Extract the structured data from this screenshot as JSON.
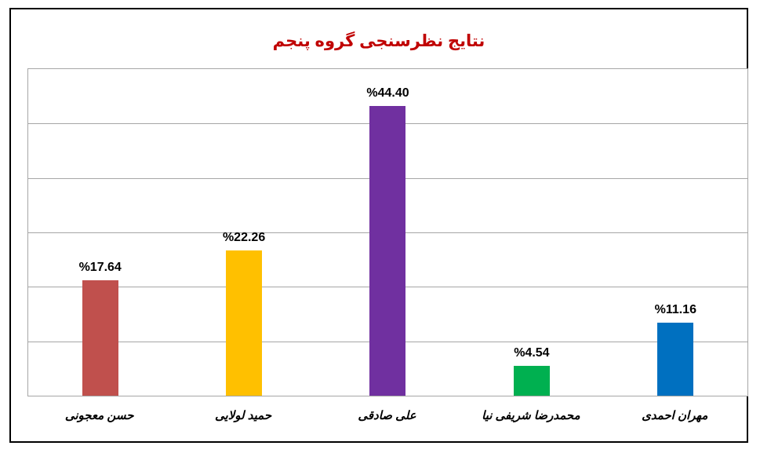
{
  "chart_data": {
    "type": "bar",
    "title": "نتایج نظرسنجی گروه پنجم",
    "title_color": "#C00000",
    "categories": [
      "حسن معجونی",
      "حمید لولایی",
      "علی صادقی",
      "محمدرضا شریفی نیا",
      "مهران احمدی"
    ],
    "values": [
      17.64,
      22.26,
      44.4,
      4.54,
      11.16
    ],
    "value_labels": [
      "%17.64",
      "%22.26",
      "%44.40",
      "%4.54",
      "%11.16"
    ],
    "bar_colors": [
      "#C0504D",
      "#FFC000",
      "#7030A0",
      "#00B050",
      "#0070C0"
    ],
    "ylim": [
      0,
      50
    ],
    "y_divisions": 6,
    "gridline_color": "#A6A6A6",
    "grid": "horizontal-only",
    "xlabel": "",
    "ylabel": "",
    "legend": "none",
    "y_axis_tick_labels": "hidden",
    "frame_border_color": "#000000"
  }
}
